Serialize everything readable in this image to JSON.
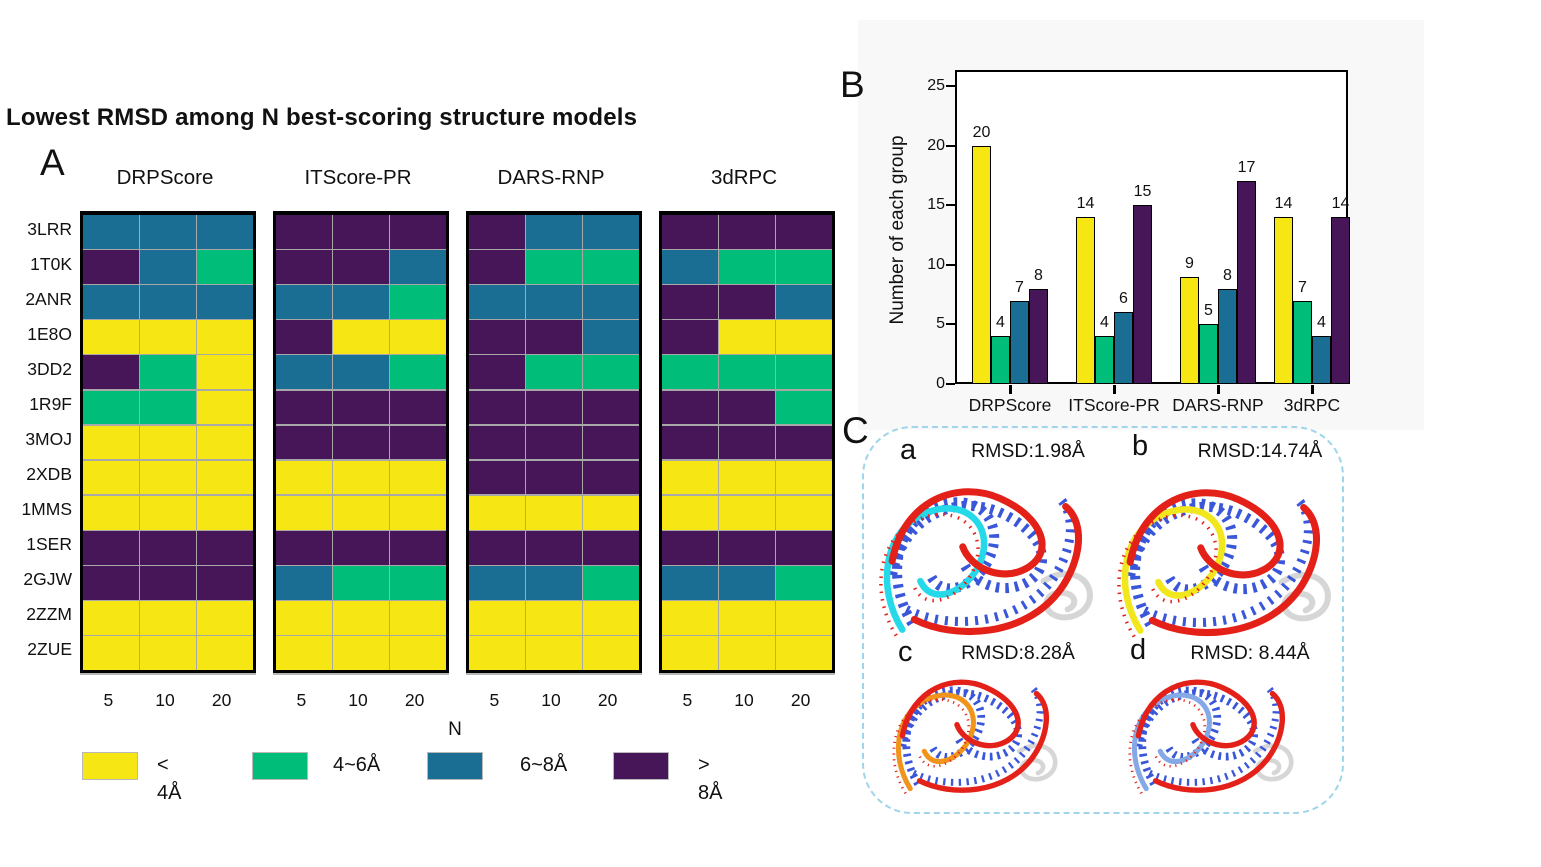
{
  "panel_a": {
    "label": "A",
    "title": "Lowest RMSD among N best-scoring structure models"
  },
  "panel_b": {
    "label": "B"
  },
  "panel_c": {
    "label": "C",
    "structures": [
      {
        "label": "a",
        "rmsd": "RMSD:1.98Å",
        "colors": {
          "ribbon": "#E32119",
          "partner": "#25D9E8",
          "bases": "#3A56D9",
          "protein": "#D6D6D6"
        }
      },
      {
        "label": "b",
        "rmsd": "RMSD:14.74Å",
        "colors": {
          "ribbon": "#E32119",
          "partner": "#F2E71D",
          "bases": "#3A56D9",
          "protein": "#D6D6D6"
        }
      },
      {
        "label": "c",
        "rmsd": "RMSD:8.28Å",
        "colors": {
          "ribbon": "#E32119",
          "partner": "#F0941C",
          "bases": "#3A56D9",
          "protein": "#D6D6D6"
        }
      },
      {
        "label": "d",
        "rmsd": "RMSD: 8.44Å",
        "colors": {
          "ribbon": "#E32119",
          "partner": "#85A9E6",
          "bases": "#3A56D9",
          "protein": "#D6D6D6"
        }
      }
    ]
  },
  "chart_data": [
    {
      "id": "rmsd_heatmap",
      "type": "heatmap",
      "title": "Lowest RMSD among N best-scoring structure models",
      "row_labels": [
        "3LRR",
        "1T0K",
        "2ANR",
        "1E8O",
        "3DD2",
        "1R9F",
        "3MOJ",
        "2XDB",
        "1MMS",
        "1SER",
        "2GJW",
        "2ZZM",
        "2ZUE"
      ],
      "col_groups": [
        "DRPScore",
        "ITScore-PR",
        "DARS-RNP",
        "3dRPC"
      ],
      "col_labels": [
        "5",
        "10",
        "20"
      ],
      "xlabel": "N",
      "legend": [
        "< 4Å",
        "4~6Å",
        "6~8Å",
        "> 8Å"
      ],
      "palette": {
        "< 4Å": "#F5E614",
        "4~6Å": "#00BE7A",
        "6~8Å": "#1B6E93",
        "> 8Å": "#471659"
      },
      "values": {
        "DRPScore": [
          [
            "6~8Å",
            "6~8Å",
            "6~8Å"
          ],
          [
            "> 8Å",
            "6~8Å",
            "4~6Å"
          ],
          [
            "6~8Å",
            "6~8Å",
            "6~8Å"
          ],
          [
            "< 4Å",
            "< 4Å",
            "< 4Å"
          ],
          [
            "> 8Å",
            "4~6Å",
            "< 4Å"
          ],
          [
            "4~6Å",
            "4~6Å",
            "< 4Å"
          ],
          [
            "< 4Å",
            "< 4Å",
            "< 4Å"
          ],
          [
            "< 4Å",
            "< 4Å",
            "< 4Å"
          ],
          [
            "< 4Å",
            "< 4Å",
            "< 4Å"
          ],
          [
            "> 8Å",
            "> 8Å",
            "> 8Å"
          ],
          [
            "> 8Å",
            "> 8Å",
            "> 8Å"
          ],
          [
            "< 4Å",
            "< 4Å",
            "< 4Å"
          ],
          [
            "< 4Å",
            "< 4Å",
            "< 4Å"
          ]
        ],
        "ITScore-PR": [
          [
            "> 8Å",
            "> 8Å",
            "> 8Å"
          ],
          [
            "> 8Å",
            "> 8Å",
            "6~8Å"
          ],
          [
            "6~8Å",
            "6~8Å",
            "4~6Å"
          ],
          [
            "> 8Å",
            "< 4Å",
            "< 4Å"
          ],
          [
            "6~8Å",
            "6~8Å",
            "4~6Å"
          ],
          [
            "> 8Å",
            "> 8Å",
            "> 8Å"
          ],
          [
            "> 8Å",
            "> 8Å",
            "> 8Å"
          ],
          [
            "< 4Å",
            "< 4Å",
            "< 4Å"
          ],
          [
            "< 4Å",
            "< 4Å",
            "< 4Å"
          ],
          [
            "> 8Å",
            "> 8Å",
            "> 8Å"
          ],
          [
            "6~8Å",
            "4~6Å",
            "4~6Å"
          ],
          [
            "< 4Å",
            "< 4Å",
            "< 4Å"
          ],
          [
            "< 4Å",
            "< 4Å",
            "< 4Å"
          ]
        ],
        "DARS-RNP": [
          [
            "> 8Å",
            "6~8Å",
            "6~8Å"
          ],
          [
            "> 8Å",
            "4~6Å",
            "4~6Å"
          ],
          [
            "6~8Å",
            "6~8Å",
            "6~8Å"
          ],
          [
            "> 8Å",
            "> 8Å",
            "6~8Å"
          ],
          [
            "> 8Å",
            "4~6Å",
            "4~6Å"
          ],
          [
            "> 8Å",
            "> 8Å",
            "> 8Å"
          ],
          [
            "> 8Å",
            "> 8Å",
            "> 8Å"
          ],
          [
            "> 8Å",
            "> 8Å",
            "> 8Å"
          ],
          [
            "< 4Å",
            "< 4Å",
            "< 4Å"
          ],
          [
            "> 8Å",
            "> 8Å",
            "> 8Å"
          ],
          [
            "6~8Å",
            "6~8Å",
            "4~6Å"
          ],
          [
            "< 4Å",
            "< 4Å",
            "< 4Å"
          ],
          [
            "< 4Å",
            "< 4Å",
            "< 4Å"
          ]
        ],
        "3dRPC": [
          [
            "> 8Å",
            "> 8Å",
            "> 8Å"
          ],
          [
            "6~8Å",
            "4~6Å",
            "4~6Å"
          ],
          [
            "> 8Å",
            "> 8Å",
            "6~8Å"
          ],
          [
            "> 8Å",
            "< 4Å",
            "< 4Å"
          ],
          [
            "4~6Å",
            "4~6Å",
            "4~6Å"
          ],
          [
            "> 8Å",
            "> 8Å",
            "4~6Å"
          ],
          [
            "> 8Å",
            "> 8Å",
            "> 8Å"
          ],
          [
            "< 4Å",
            "< 4Å",
            "< 4Å"
          ],
          [
            "< 4Å",
            "< 4Å",
            "< 4Å"
          ],
          [
            "> 8Å",
            "> 8Å",
            "> 8Å"
          ],
          [
            "6~8Å",
            "6~8Å",
            "4~6Å"
          ],
          [
            "< 4Å",
            "< 4Å",
            "< 4Å"
          ],
          [
            "< 4Å",
            "< 4Å",
            "< 4Å"
          ]
        ]
      }
    },
    {
      "id": "group_counts",
      "type": "bar",
      "categories": [
        "DRPScore",
        "ITScore-PR",
        "DARS-RNP",
        "3dRPC"
      ],
      "series": [
        {
          "name": "< 4Å",
          "color": "#F5E614",
          "values": [
            20,
            14,
            9,
            14
          ]
        },
        {
          "name": "4~6Å",
          "color": "#00BE7A",
          "values": [
            4,
            4,
            5,
            7
          ]
        },
        {
          "name": "6~8Å",
          "color": "#1B6E93",
          "values": [
            7,
            6,
            8,
            4
          ]
        },
        {
          "name": "> 8Å",
          "color": "#471659",
          "values": [
            8,
            15,
            17,
            14
          ]
        }
      ],
      "ylabel": "Number of each group",
      "ylim": [
        0,
        25
      ],
      "yticks": [
        0,
        5,
        10,
        15,
        20,
        25
      ],
      "grid": false,
      "legend_position": "none",
      "bar_value_labels": true
    }
  ]
}
